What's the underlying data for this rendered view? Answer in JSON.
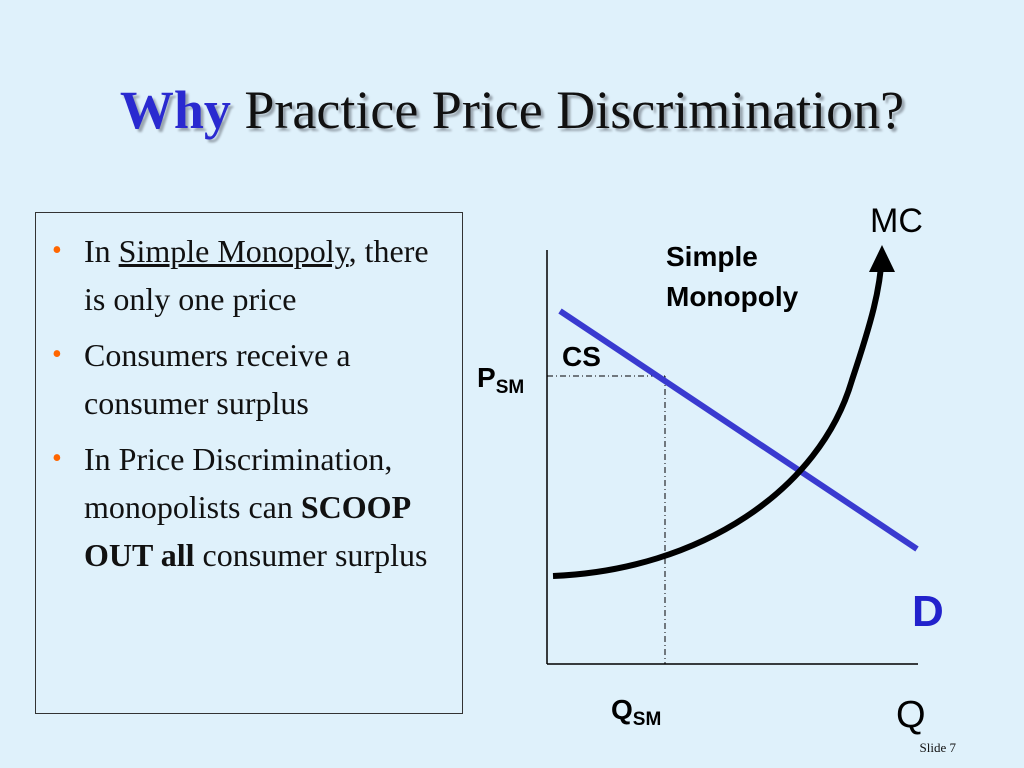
{
  "title": {
    "accent": "Why",
    "rest": "Practice Price Discrimination?"
  },
  "bullets": [
    {
      "pre": "In ",
      "underlined": "Simple Monopoly",
      "post": ", there is only one price"
    },
    {
      "text": "Consumers receive a consumer surplus"
    },
    {
      "pre": "In Price Discrimination, monopolists can ",
      "bold": "SCOOP OUT all",
      "post": " consumer surplus"
    }
  ],
  "diagram": {
    "label_simple": "Simple",
    "label_monopoly": "Monopoly",
    "label_mc": "MC",
    "label_cs": "CS",
    "label_d": "D",
    "label_q": "Q",
    "label_p_main": "P",
    "label_p_sub": "SM",
    "label_q_main": "Q",
    "label_q_sub": "SM",
    "colors": {
      "demand": "#3a3ad0",
      "mc": "#000000",
      "d_label": "#2222cc"
    }
  },
  "footer": {
    "slide_number": "Slide 7"
  }
}
